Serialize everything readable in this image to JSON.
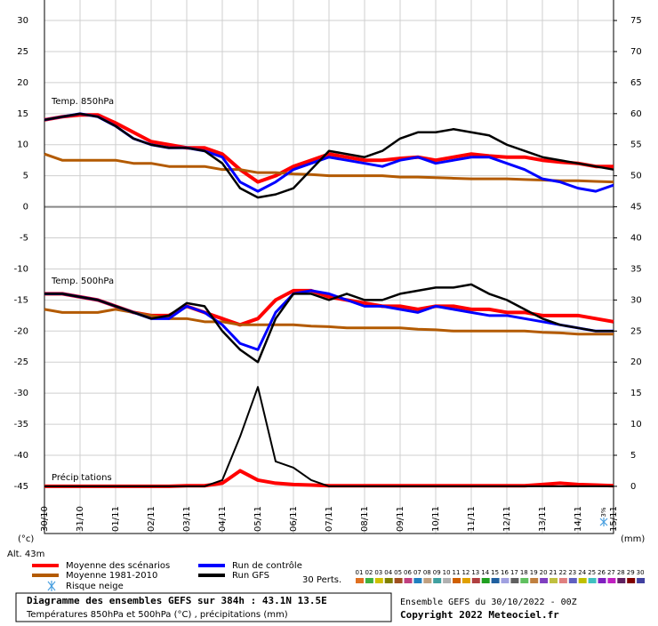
{
  "chart_data": {
    "type": "line",
    "x": [
      0,
      0.5,
      1,
      1.5,
      2,
      2.5,
      3,
      3.5,
      4,
      4.5,
      5,
      5.5,
      6,
      6.5,
      7,
      7.5,
      8,
      8.5,
      9,
      9.5,
      10,
      10.5,
      11,
      11.5,
      12,
      12.5,
      13,
      13.5,
      14,
      14.5,
      15,
      15.5,
      16
    ],
    "xlim": [
      0,
      16
    ],
    "xticks": [
      {
        "value": 0,
        "label": "30/10"
      },
      {
        "value": 1,
        "label": "31/10"
      },
      {
        "value": 2,
        "label": "01/11"
      },
      {
        "value": 3,
        "label": "02/11"
      },
      {
        "value": 4,
        "label": "03/11"
      },
      {
        "value": 5,
        "label": "04/11"
      },
      {
        "value": 6,
        "label": "05/11"
      },
      {
        "value": 7,
        "label": "06/11"
      },
      {
        "value": 8,
        "label": "07/11"
      },
      {
        "value": 9,
        "label": "08/11"
      },
      {
        "value": 10,
        "label": "09/11"
      },
      {
        "value": 11,
        "label": "10/11"
      },
      {
        "value": 12,
        "label": "11/11"
      },
      {
        "value": 13,
        "label": "12/11"
      },
      {
        "value": 14,
        "label": "13/11"
      },
      {
        "value": 15,
        "label": "14/11"
      },
      {
        "value": 16,
        "label": "15/11"
      }
    ],
    "ylim": [
      -52.6,
      33.3
    ],
    "yticks": [
      30,
      25,
      20,
      15,
      10,
      5,
      0,
      -5,
      -10,
      -15,
      -20,
      -25,
      -30,
      -35,
      -40,
      -45
    ],
    "y2lim": [
      -7.6,
      78.3
    ],
    "y2ticks": [
      75,
      70,
      65,
      60,
      55,
      50,
      45,
      40,
      35,
      30,
      25,
      20,
      15,
      10,
      5,
      0
    ],
    "grid": true,
    "y_unit": "(°c)",
    "y2_unit": "(mm)",
    "altitude": "Alt. 43m",
    "panel_labels": [
      "Temp. 850hPa",
      "Temp. 500hPa",
      "Précipitations"
    ],
    "series": [
      {
        "name": "Moyenne des scénarios",
        "color": "#ff0000",
        "width": 4,
        "values": [
          14,
          14.5,
          14.8,
          14.8,
          13.5,
          12,
          10.5,
          10,
          9.5,
          9.5,
          8.5,
          6,
          4,
          5,
          6.5,
          7.5,
          8.5,
          8,
          7.5,
          7.5,
          7.8,
          8,
          7.5,
          8,
          8.5,
          8.2,
          8,
          8,
          7.5,
          7.2,
          7,
          6.5,
          6.5
        ]
      },
      {
        "name": "Moyenne 1981-2010",
        "color": "#b35a00",
        "width": 3,
        "values": [
          8.5,
          7.5,
          7.5,
          7.5,
          7.5,
          7,
          7,
          6.5,
          6.5,
          6.5,
          6,
          6,
          5.5,
          5.5,
          5.3,
          5.2,
          5,
          5,
          5,
          5,
          4.8,
          4.8,
          4.7,
          4.6,
          4.5,
          4.5,
          4.5,
          4.4,
          4.3,
          4.2,
          4.2,
          4.1,
          4
        ]
      },
      {
        "name": "Run de contrôle",
        "color": "#0000ff",
        "width": 3,
        "values": [
          14,
          14.5,
          15,
          14.5,
          13,
          11,
          10,
          9.5,
          9.5,
          9,
          8,
          4,
          2.5,
          4,
          6,
          7,
          8,
          7.5,
          7,
          6.5,
          7.5,
          8,
          7,
          7.5,
          8,
          8,
          7,
          6,
          4.5,
          4,
          3,
          2.5,
          3.5
        ]
      },
      {
        "name": "Run GFS",
        "color": "#000000",
        "width": 2.5,
        "values": [
          14,
          14.5,
          15,
          14.5,
          13,
          11,
          10,
          9.5,
          9.5,
          9,
          7,
          3,
          1.5,
          2,
          3,
          6,
          9,
          8.5,
          8,
          9,
          11,
          12,
          12,
          12.5,
          12,
          11.5,
          10,
          9,
          8,
          7.5,
          7,
          6.5,
          6
        ]
      },
      {
        "name": "Moyenne des scénarios",
        "color": "#ff0000",
        "width": 4,
        "values": [
          -14,
          -14,
          -14.5,
          -15,
          -16,
          -17,
          -17.5,
          -17.5,
          -16,
          -17,
          -18,
          -19,
          -18,
          -15,
          -13.5,
          -13.5,
          -14.5,
          -15,
          -15.5,
          -16,
          -16,
          -16.5,
          -16,
          -16,
          -16.5,
          -16.5,
          -17,
          -17,
          -17.5,
          -17.5,
          -17.5,
          -18,
          -18.5
        ]
      },
      {
        "name": "Moyenne 1981-2010",
        "color": "#b35a00",
        "width": 3,
        "values": [
          -16.5,
          -17,
          -17,
          -17,
          -16.5,
          -17,
          -17.5,
          -18,
          -18,
          -18.5,
          -18.5,
          -19,
          -19,
          -19,
          -19,
          -19.2,
          -19.3,
          -19.5,
          -19.5,
          -19.5,
          -19.5,
          -19.7,
          -19.8,
          -20,
          -20,
          -20,
          -20,
          -20,
          -20.2,
          -20.3,
          -20.5,
          -20.5,
          -20.5
        ]
      },
      {
        "name": "Run de contrôle",
        "color": "#0000ff",
        "width": 3,
        "values": [
          -14,
          -14,
          -14.5,
          -15,
          -16,
          -17,
          -18,
          -18,
          -16,
          -17,
          -19,
          -22,
          -23,
          -17,
          -14,
          -13.5,
          -14,
          -15,
          -16,
          -16,
          -16.5,
          -17,
          -16,
          -16.5,
          -17,
          -17.5,
          -17.5,
          -18,
          -18.5,
          -19,
          -19.5,
          -20,
          -20
        ]
      },
      {
        "name": "Run GFS",
        "color": "#000000",
        "width": 2.5,
        "values": [
          -14,
          -14,
          -14.5,
          -15,
          -16,
          -17,
          -18,
          -17.5,
          -15.5,
          -16,
          -20,
          -23,
          -25,
          -18,
          -14,
          -14,
          -15,
          -14,
          -15,
          -15,
          -14,
          -13.5,
          -13,
          -13,
          -12.5,
          -14,
          -15,
          -16.5,
          -18,
          -19,
          -19.5,
          -20,
          -20
        ]
      },
      {
        "name": "Moyenne des scénarios",
        "color": "#ff0000",
        "width": 4,
        "axis": "y2",
        "values": [
          0,
          0,
          0,
          0,
          0,
          0,
          0,
          0,
          0.1,
          0.1,
          0.5,
          2.5,
          1,
          0.5,
          0.3,
          0.2,
          0.1,
          0.1,
          0.1,
          0.1,
          0.1,
          0.1,
          0.1,
          0.1,
          0.1,
          0.1,
          0.1,
          0.1,
          0.3,
          0.5,
          0.3,
          0.2,
          0.1
        ]
      },
      {
        "name": "Run GFS",
        "color": "#000000",
        "width": 2,
        "axis": "y2",
        "values": [
          0,
          0,
          0,
          0,
          0,
          0,
          0,
          0,
          0,
          0,
          1,
          8,
          16,
          4,
          3,
          1,
          0,
          0,
          0,
          0,
          0,
          0,
          0,
          0,
          0,
          0,
          0,
          0,
          0,
          0,
          0,
          0,
          0
        ]
      }
    ],
    "snow_risk": {
      "label": "Risque neige",
      "value_label": "3%"
    },
    "perturbations": {
      "label": "30 Perts.",
      "names": [
        "01",
        "02",
        "03",
        "04",
        "05",
        "06",
        "07",
        "08",
        "09",
        "10",
        "11",
        "12",
        "13",
        "14",
        "15",
        "16",
        "17",
        "18",
        "19",
        "20",
        "21",
        "22",
        "23",
        "24",
        "25",
        "26",
        "27",
        "28",
        "29",
        "30"
      ],
      "colors": [
        "#e07020",
        "#40b040",
        "#d0c000",
        "#808000",
        "#a05020",
        "#c04080",
        "#2080c0",
        "#c0a080",
        "#40a0a0",
        "#b0b0b0",
        "#d06000",
        "#e0a000",
        "#b04040",
        "#20a020",
        "#2060a0",
        "#a0a0e0",
        "#606060",
        "#60c060",
        "#c08040",
        "#8040c0",
        "#c0c040",
        "#e08080",
        "#6060c0",
        "#c0c000",
        "#40c0c0",
        "#8020c0",
        "#c020c0",
        "#602060",
        "#800000",
        "#4040a0"
      ]
    },
    "footer": {
      "title": "Diagramme des ensembles GEFS sur 384h : 43.1N 13.5E",
      "subtitle": "Températures 850hPa et 500hPa (°C) , précipitations (mm)",
      "run": "Ensemble GEFS du 30/10/2022 - 00Z",
      "copyright": "Copyright 2022 Meteociel.fr"
    }
  }
}
